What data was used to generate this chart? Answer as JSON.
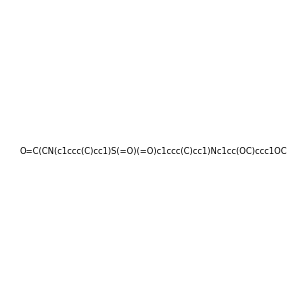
{
  "smiles": "O=C(CN(c1ccc(C)cc1)S(=O)(=O)c1ccc(C)cc1)Nc1cc(OC)ccc1OC",
  "image_size": 300,
  "background_color": "#e8e8e8"
}
